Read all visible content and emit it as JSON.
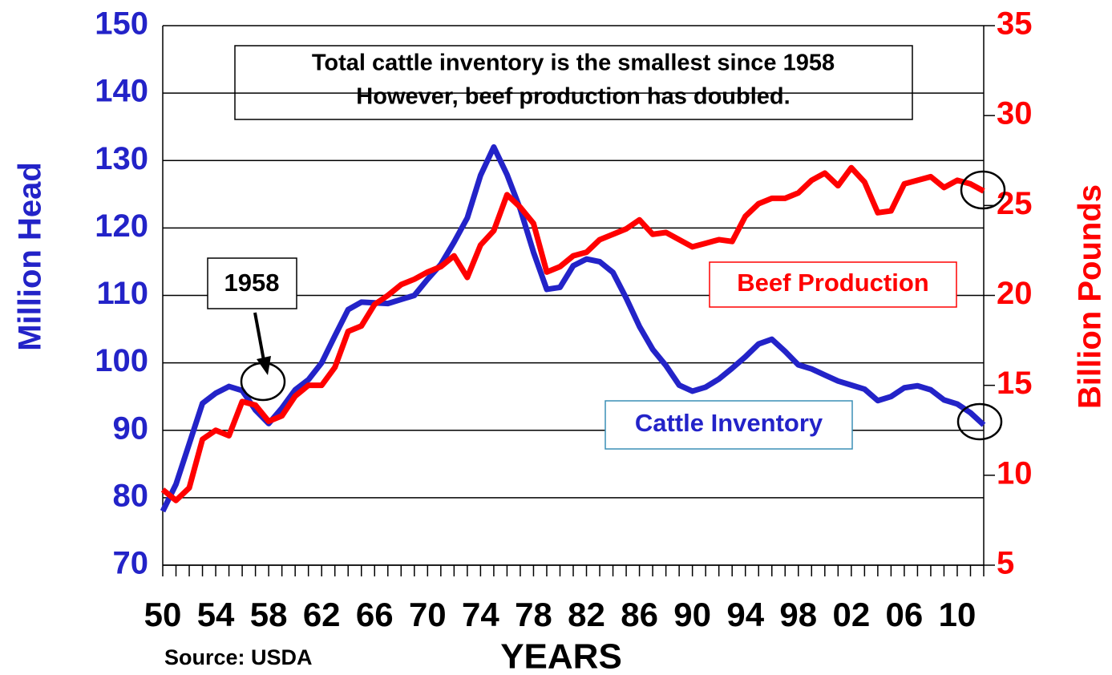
{
  "chart_data": {
    "type": "line",
    "title": [
      "Total cattle inventory is the smallest since 1958",
      "However, beef production has doubled."
    ],
    "annotation": "1958",
    "source": "Source: USDA",
    "xlabel": "YEARS",
    "ylabel": "Million Head",
    "y2label": "Billion Pounds",
    "x": [
      1950,
      1951,
      1952,
      1953,
      1954,
      1955,
      1956,
      1957,
      1958,
      1959,
      1960,
      1961,
      1962,
      1963,
      1964,
      1965,
      1966,
      1967,
      1968,
      1969,
      1970,
      1971,
      1972,
      1973,
      1974,
      1975,
      1976,
      1977,
      1978,
      1979,
      1980,
      1981,
      1982,
      1983,
      1984,
      1985,
      1986,
      1987,
      1988,
      1989,
      1990,
      1991,
      1992,
      1993,
      1994,
      1995,
      1996,
      1997,
      1998,
      1999,
      2000,
      2001,
      2002,
      2003,
      2004,
      2005,
      2006,
      2007,
      2008,
      2009,
      2010,
      2011,
      2012
    ],
    "series": [
      {
        "name": "Cattle Inventory",
        "color": "#2323c8",
        "values": [
          78,
          82,
          88,
          94,
          95.5,
          96.5,
          95.9,
          93,
          91,
          93.3,
          96,
          97.5,
          100,
          104,
          107.9,
          109,
          108.9,
          108.8,
          109.4,
          110,
          112.4,
          114.6,
          117.9,
          121.5,
          127.8,
          132,
          127.9,
          122.8,
          116.4,
          110.9,
          111.2,
          114.4,
          115.4,
          115,
          113.4,
          109.6,
          105.4,
          102,
          99.6,
          96.7,
          95.8,
          96.4,
          97.6,
          99.2,
          100.9,
          102.8,
          103.5,
          101.7,
          99.7,
          99.1,
          98.2,
          97.3,
          96.7,
          96.1,
          94.4,
          95,
          96.3,
          96.6,
          96,
          94.5,
          93.9,
          92.6,
          90.8
        ]
      },
      {
        "name": "Beef Production",
        "color": "#ff0000",
        "axis": "y2",
        "values": [
          9.2,
          8.6,
          9.3,
          12,
          12.5,
          12.2,
          14.1,
          13.9,
          13,
          13.3,
          14.4,
          15,
          15,
          16,
          18,
          18.3,
          19.5,
          20,
          20.6,
          20.9,
          21.3,
          21.6,
          22.2,
          21,
          22.8,
          23.6,
          25.6,
          24.9,
          24,
          21.3,
          21.6,
          22.2,
          22.4,
          23.1,
          23.4,
          23.7,
          24.2,
          23.4,
          23.5,
          23.1,
          22.7,
          22.9,
          23.1,
          23,
          24.4,
          25.1,
          25.4,
          25.4,
          25.7,
          26.4,
          26.8,
          26.1,
          27.1,
          26.3,
          24.6,
          24.7,
          26.2,
          26.4,
          26.6,
          26,
          26.4,
          26.2,
          25.8
        ]
      }
    ],
    "xlim": [
      1950,
      2012
    ],
    "xticks": [
      {
        "value": 1950,
        "label": "50"
      },
      {
        "value": 1954,
        "label": "54"
      },
      {
        "value": 1958,
        "label": "58"
      },
      {
        "value": 1962,
        "label": "62"
      },
      {
        "value": 1966,
        "label": "66"
      },
      {
        "value": 1970,
        "label": "70"
      },
      {
        "value": 1974,
        "label": "74"
      },
      {
        "value": 1978,
        "label": "78"
      },
      {
        "value": 1982,
        "label": "82"
      },
      {
        "value": 1986,
        "label": "86"
      },
      {
        "value": 1990,
        "label": "90"
      },
      {
        "value": 1994,
        "label": "94"
      },
      {
        "value": 1998,
        "label": "98"
      },
      {
        "value": 2002,
        "label": "02"
      },
      {
        "value": 2006,
        "label": "06"
      },
      {
        "value": 2010,
        "label": "10"
      }
    ],
    "ylim": [
      70,
      150
    ],
    "yticks": [
      70,
      80,
      90,
      100,
      110,
      120,
      130,
      140,
      150
    ],
    "y2lim": [
      5,
      35
    ],
    "y2ticks": [
      5,
      10,
      15,
      20,
      25,
      30,
      35
    ],
    "grid": true
  }
}
